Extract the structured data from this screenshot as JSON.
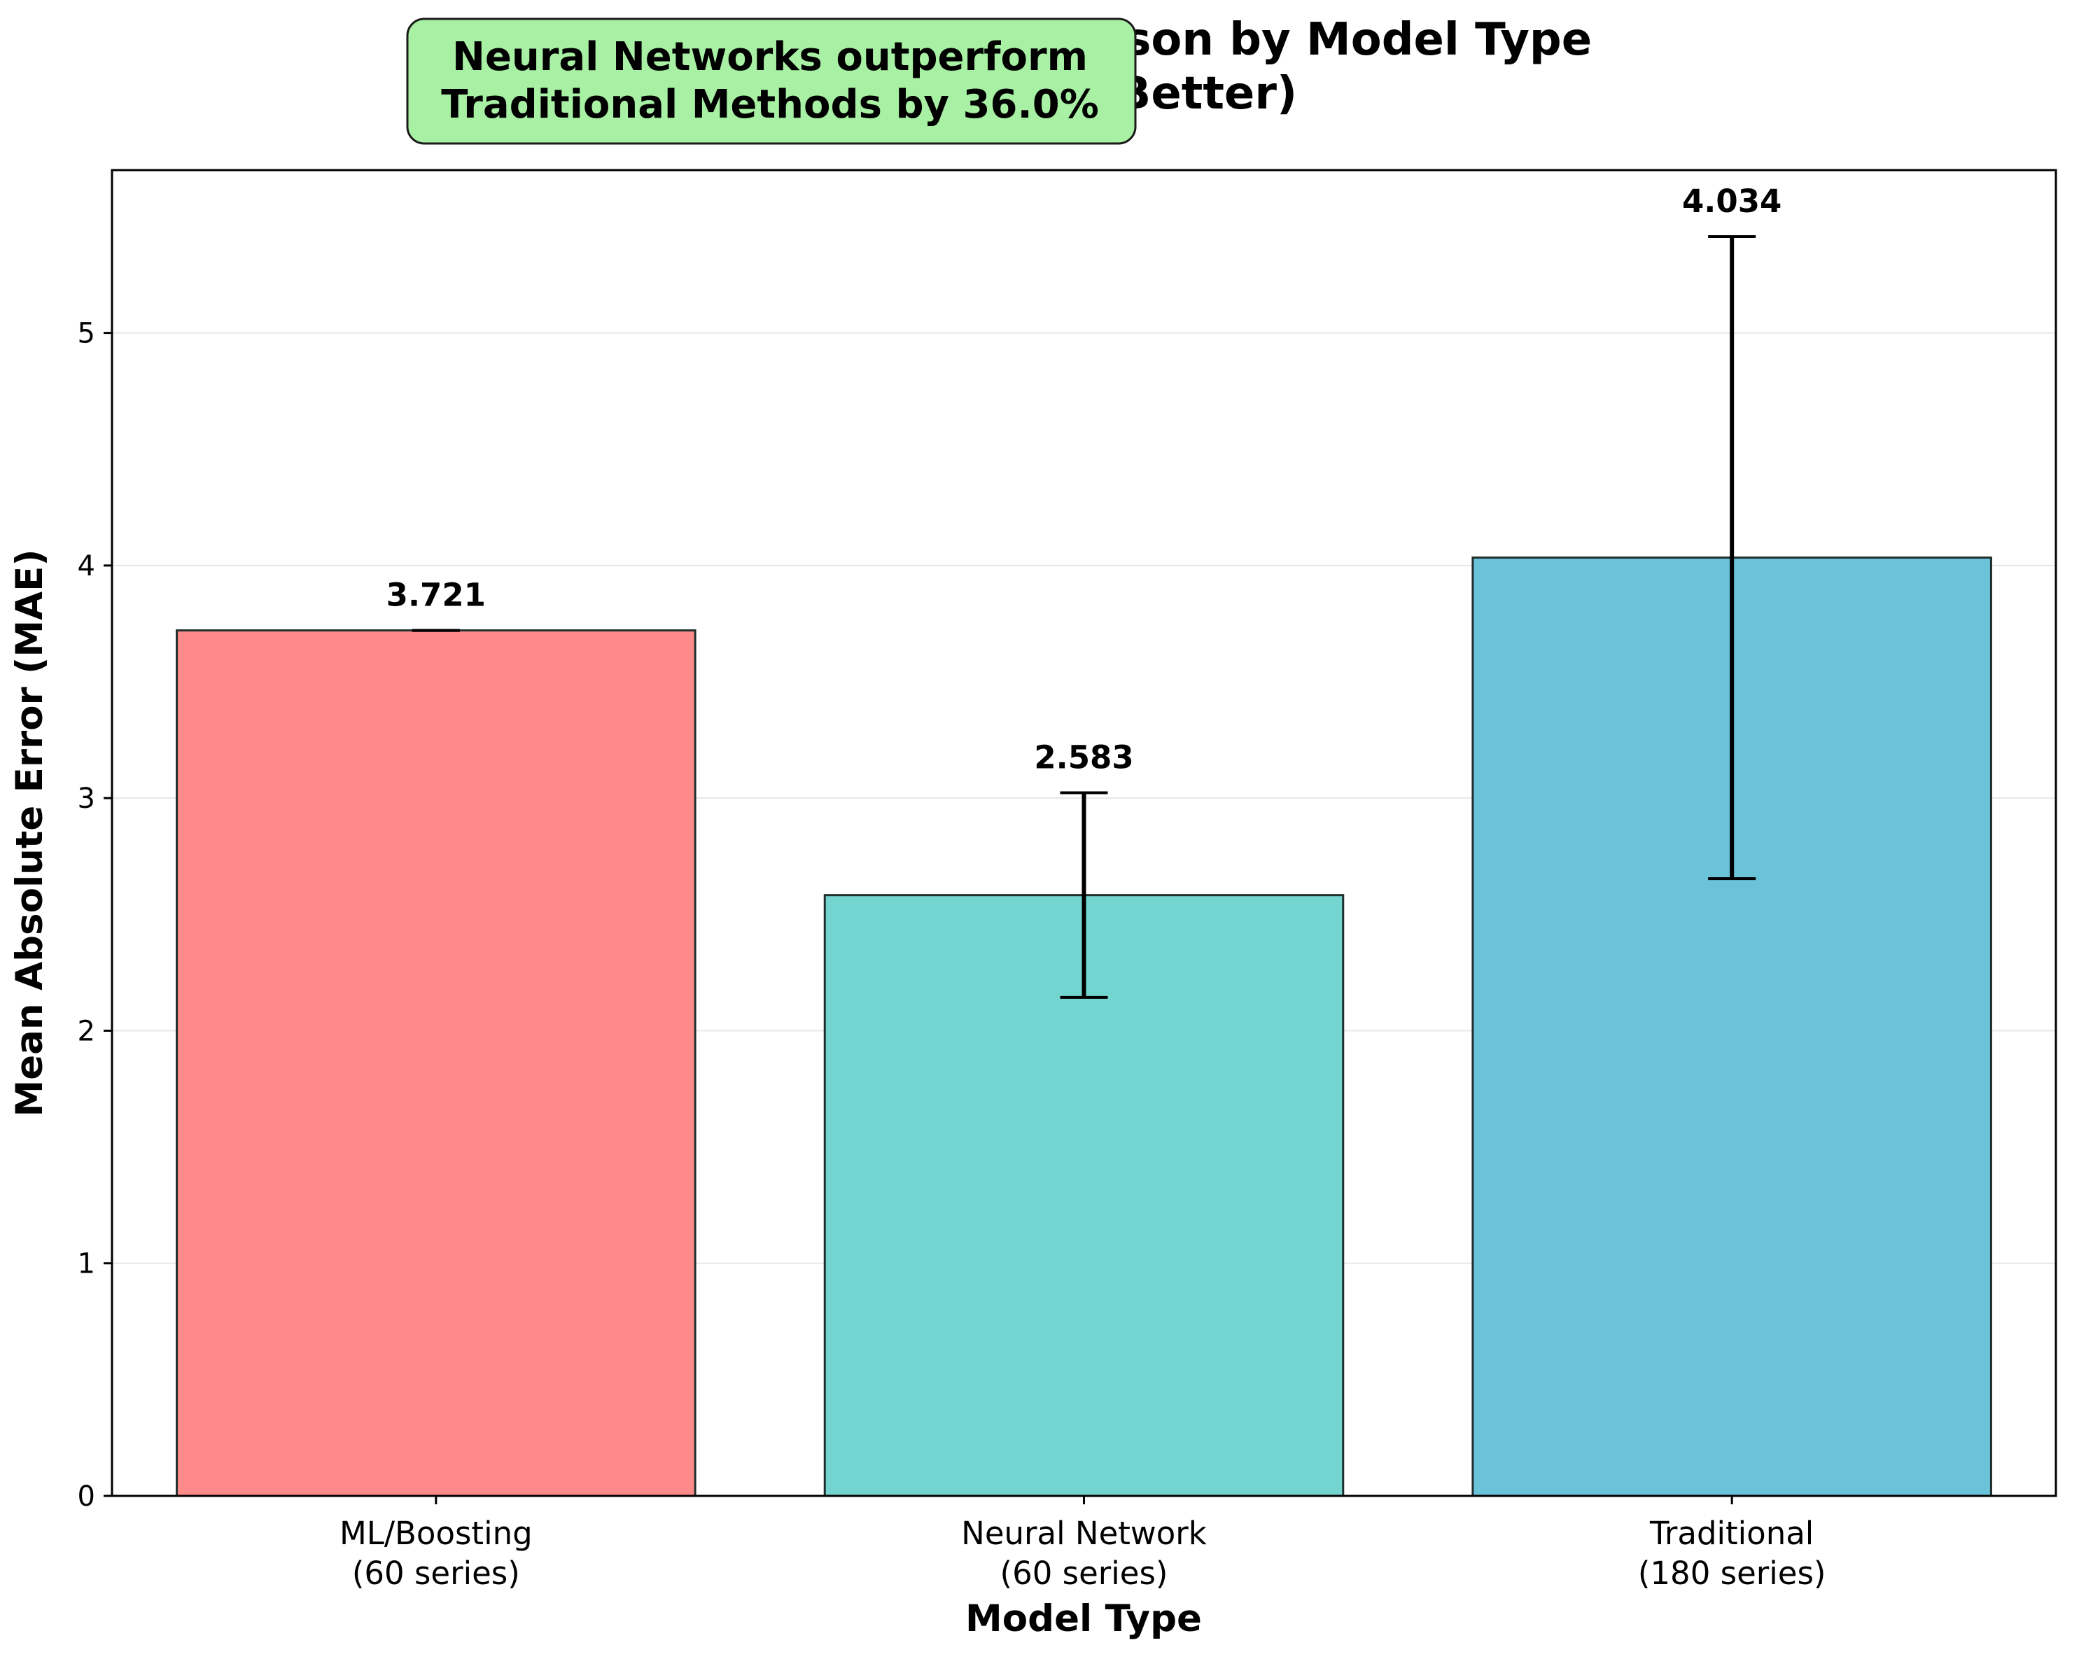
{
  "chart_data": {
    "type": "bar",
    "title": "Performance Comparison by Model Type\n(Lower is Better)",
    "title_lines": [
      "Performance Comparison by Model Type",
      "(Lower is Better)"
    ],
    "xlabel": "Model Type",
    "ylabel": "Mean Absolute Error (MAE)",
    "categories": [
      [
        "ML/Boosting",
        "(60 series)"
      ],
      [
        "Neural Network",
        "(60 series)"
      ],
      [
        "Traditional",
        "(180 series)"
      ]
    ],
    "values": [
      3.721,
      2.583,
      4.034
    ],
    "value_labels": [
      "3.721",
      "2.583",
      "4.034"
    ],
    "error": [
      0.0,
      0.44,
      1.38
    ],
    "colors": [
      "#ff8a8a",
      "#74d5d0",
      "#6ac3d9"
    ],
    "edge_color": "#1f2d2d",
    "ylim": [
      0,
      5.7
    ],
    "yticks": [
      0,
      1,
      2,
      3,
      4,
      5
    ],
    "grid": "y",
    "annotation": {
      "lines": [
        "Neural Networks outperform",
        "Traditional Methods by 36.0%"
      ],
      "box_color": "#a8f0a4"
    }
  }
}
